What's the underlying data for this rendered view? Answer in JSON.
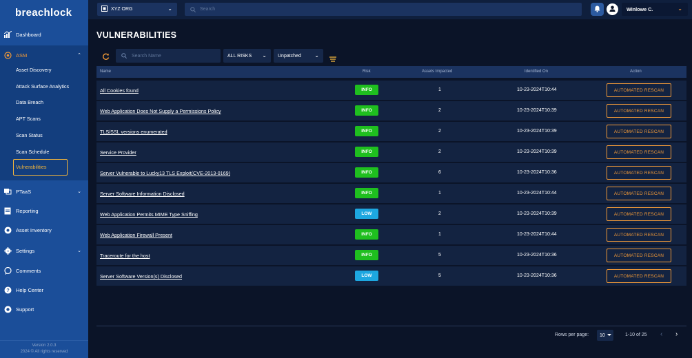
{
  "brand": {
    "logo_text_before": "breachl",
    "logo_text_o": "o",
    "logo_text_after": "ck"
  },
  "sidebar": {
    "dashboard": "Dashboard",
    "asm": "ASM",
    "asm_items": [
      "Asset Discovery",
      "Attack Surface Analytics",
      "Data Breach",
      "APT Scans",
      "Scan Status",
      "Scan Schedule"
    ],
    "active_item": "Vulnerabilities",
    "ptaas": "PTaaS",
    "reporting": "Reporting",
    "asset_inventory": "Asset Inventory",
    "settings": "Settings",
    "comments": "Comments",
    "help_center": "Help Center",
    "support": "Support",
    "version": "Version 2.0.3",
    "copyright": "2024 © All rights reserved"
  },
  "topbar": {
    "org": "XYZ ORG",
    "search_placeholder": "Search",
    "user": "Winlowe C."
  },
  "page": {
    "title": "VULNERABILITIES",
    "search_placeholder": "Search Name",
    "risk_filter": "ALL RISKS",
    "status_filter": "Unpatched"
  },
  "table": {
    "headers": {
      "name": "Name",
      "risk": "Risk",
      "assets": "Assets Impacted",
      "identified": "Identified On",
      "action": "Action"
    },
    "action_label": "AUTOMATED RESCAN",
    "rows": [
      {
        "name": "All Cookies found",
        "risk": "INFO",
        "assets": "1",
        "date": "10-23-2024T10:44"
      },
      {
        "name": "Web Application Does Not Supply a Permissions Policy",
        "risk": "INFO",
        "assets": "2",
        "date": "10-23-2024T10:39"
      },
      {
        "name": "TLS/SSL versions enumerated",
        "risk": "INFO",
        "assets": "2",
        "date": "10-23-2024T10:39"
      },
      {
        "name": "Service Provider",
        "risk": "INFO",
        "assets": "2",
        "date": "10-23-2024T10:39"
      },
      {
        "name": "Server Vulnerable to Lucky13 TLS Exploit(CVE-2013-0169)",
        "risk": "INFO",
        "assets": "6",
        "date": "10-23-2024T10:36"
      },
      {
        "name": "Server Software Information Disclosed",
        "risk": "INFO",
        "assets": "1",
        "date": "10-23-2024T10:44"
      },
      {
        "name": "Web Application Permits MIME Type Sniffing",
        "risk": "LOW",
        "assets": "2",
        "date": "10-23-2024T10:39"
      },
      {
        "name": "Web Application Firewall Present",
        "risk": "INFO",
        "assets": "1",
        "date": "10-23-2024T10:44"
      },
      {
        "name": "Traceroute for the host",
        "risk": "INFO",
        "assets": "5",
        "date": "10-23-2024T10:36"
      },
      {
        "name": "Server Software Version(s) Disclosed",
        "risk": "LOW",
        "assets": "5",
        "date": "10-23-2024T10:36"
      }
    ]
  },
  "pagination": {
    "rows_label": "Rows per page:",
    "rows_value": "10",
    "range": "1-10 of 25"
  },
  "colors": {
    "sidebar": "#1b4e99",
    "accent": "#f29a38",
    "info": "#1fbf1f",
    "low": "#1da7e0",
    "background": "#0b1428"
  }
}
